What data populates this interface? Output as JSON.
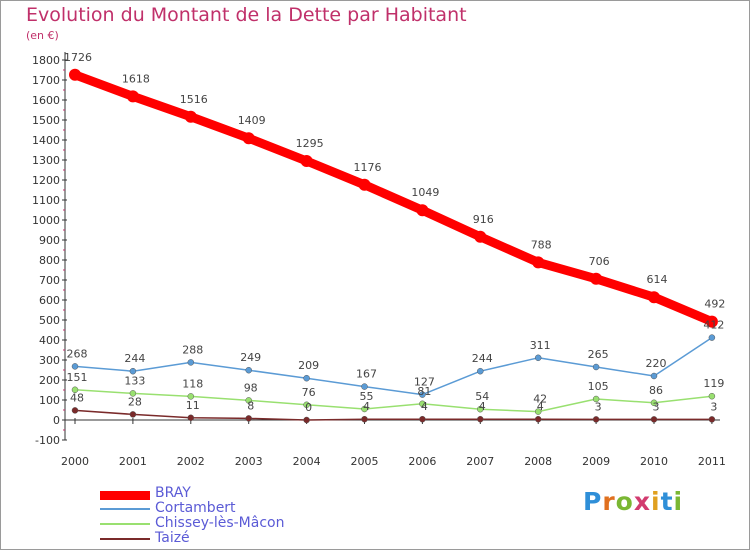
{
  "title": "Evolution du Montant de la Dette par Habitant",
  "unit_label": "(en €)",
  "logo": {
    "letters": [
      "P",
      "r",
      "o",
      "x",
      "i",
      "t",
      "i"
    ],
    "colors": [
      "#2f8fd8",
      "#e0701f",
      "#7ab733",
      "#d23b6f",
      "#e0a020",
      "#2f8fd8",
      "#7ab733"
    ]
  },
  "chart_data": {
    "type": "line",
    "title": "Evolution du Montant de la Dette par Habitant",
    "ylabel": "(en €)",
    "xlabel": "",
    "x": [
      "2000",
      "2001",
      "2002",
      "2003",
      "2004",
      "2005",
      "2006",
      "2007",
      "2008",
      "2009",
      "2010",
      "2011"
    ],
    "ylim": [
      -100,
      1800
    ],
    "yticks": [
      -100,
      0,
      100,
      200,
      300,
      400,
      500,
      600,
      700,
      800,
      900,
      1000,
      1100,
      1200,
      1300,
      1400,
      1500,
      1600,
      1700,
      1800
    ],
    "grid": false,
    "legend": "bottom-left",
    "series": [
      {
        "name": "BRAY",
        "color": "#ff0000",
        "values": [
          1726,
          1618,
          1516,
          1409,
          1295,
          1176,
          1049,
          916,
          788,
          706,
          614,
          492
        ]
      },
      {
        "name": "Cortambert",
        "color": "#5b9bd5",
        "values": [
          268,
          244,
          288,
          249,
          209,
          167,
          127,
          244,
          311,
          265,
          220,
          412
        ]
      },
      {
        "name": "Chissey-lès-Mâcon",
        "color": "#99e070",
        "values": [
          151,
          133,
          118,
          98,
          76,
          55,
          81,
          54,
          42,
          105,
          86,
          119
        ]
      },
      {
        "name": "Taizé",
        "color": "#7a2a2a",
        "values": [
          48,
          28,
          11,
          8,
          0,
          4,
          4,
          4,
          4,
          3,
          3,
          3
        ]
      }
    ]
  }
}
